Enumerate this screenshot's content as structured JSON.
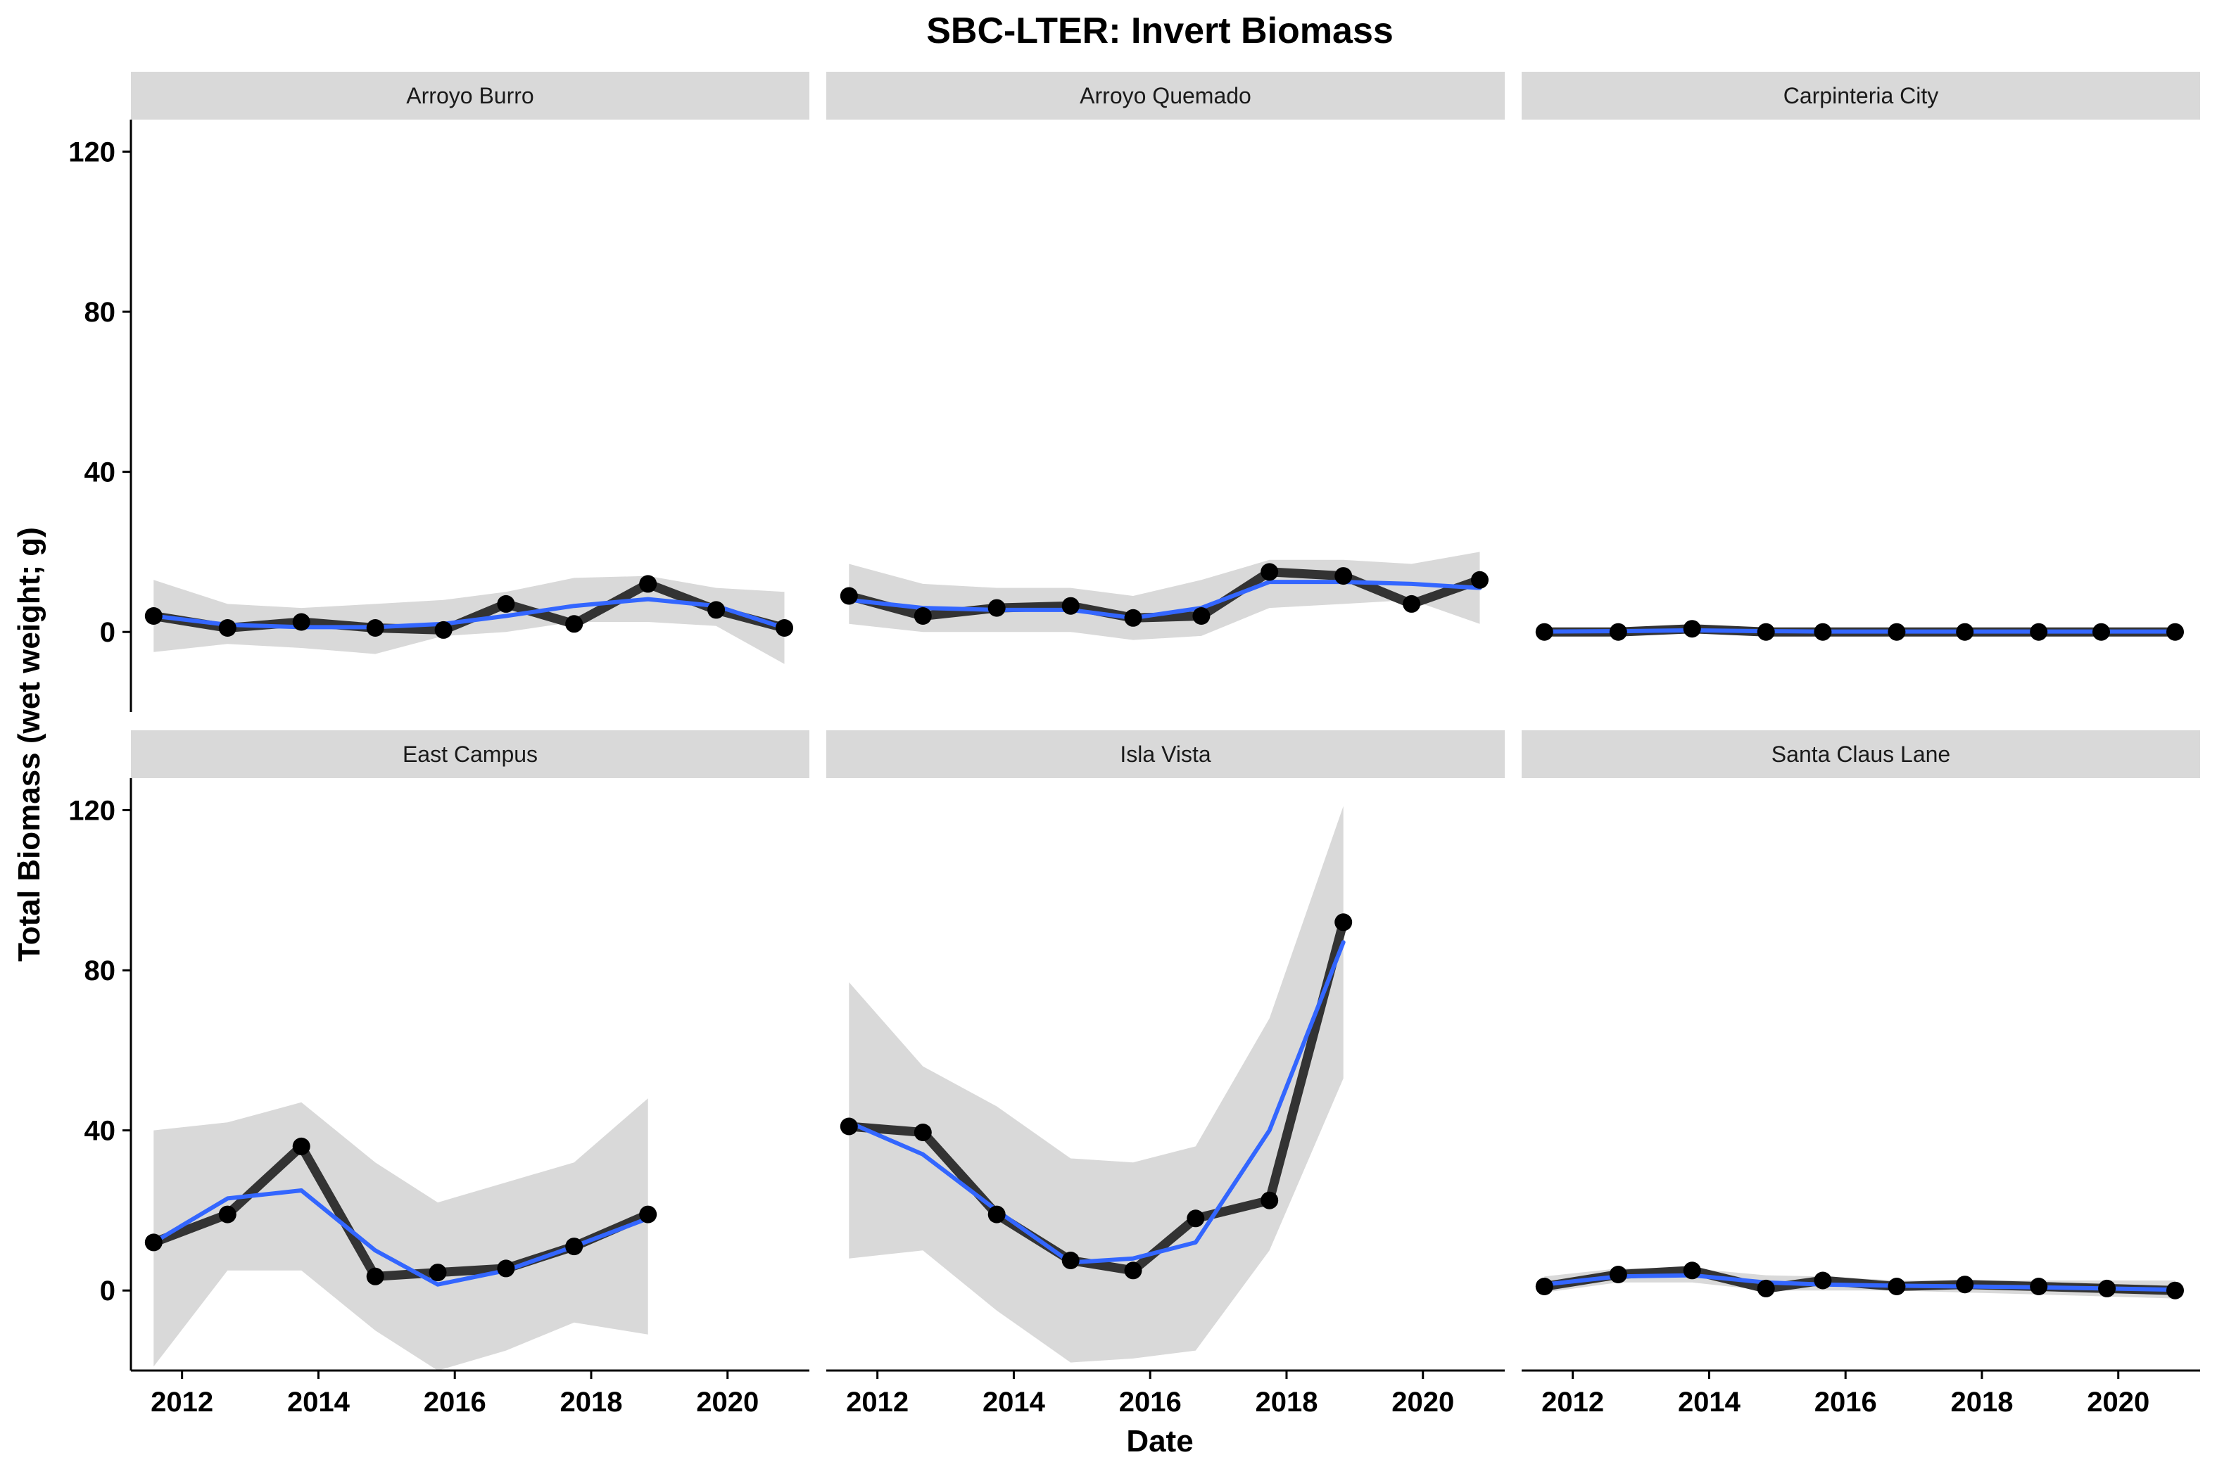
{
  "chart_data": {
    "type": "line",
    "title": "SBC-LTER: Invert Biomass",
    "xlabel": "Date",
    "ylabel": "Total Biomass (wet weight; g)",
    "xlim": [
      2011.25,
      2021.2
    ],
    "ylim": [
      -20,
      128
    ],
    "x_ticks": [
      "2012",
      "2014",
      "2016",
      "2018",
      "2020"
    ],
    "y_ticks": [
      "0",
      "40",
      "80",
      "120"
    ],
    "grid": false,
    "colors": {
      "observed": "#333333",
      "smooth": "#3366FF",
      "ribbon": "#D9D9D9",
      "strip": "#D9D9D9",
      "point": "#000000"
    },
    "facets": [
      {
        "name": "Arroyo Burro",
        "x": [
          "2011-08",
          "2012-09",
          "2013-10",
          "2014-11",
          "2015-11",
          "2016-10",
          "2017-10",
          "2018-11",
          "2019-11",
          "2020-11"
        ],
        "values": [
          4,
          1,
          2.5,
          1,
          0.5,
          7,
          2,
          12,
          5.5,
          1
        ],
        "smooth": [
          4,
          1.8,
          1.2,
          1.2,
          2,
          4,
          6.5,
          8.2,
          6.5,
          1
        ],
        "ci_lower": [
          -5,
          -3,
          -4,
          -5.5,
          -1,
          0,
          2.5,
          2.5,
          1.5,
          -8
        ],
        "ci_upper": [
          13,
          7,
          6,
          7,
          8,
          10,
          13.5,
          14,
          11,
          10
        ]
      },
      {
        "name": "Arroyo Quemado",
        "x": [
          "2011-08",
          "2012-09",
          "2013-10",
          "2014-11",
          "2015-10",
          "2016-10",
          "2017-10",
          "2018-11",
          "2019-11",
          "2020-11"
        ],
        "values": [
          9,
          4,
          6,
          6.5,
          3.5,
          4,
          15,
          14,
          7,
          13
        ],
        "smooth": [
          8,
          6,
          5.5,
          5.5,
          3.5,
          6,
          12.5,
          12.5,
          12,
          11
        ],
        "ci_lower": [
          2,
          0,
          0,
          0,
          -2,
          -1,
          6,
          7,
          8,
          2
        ],
        "ci_upper": [
          17,
          12,
          11,
          11,
          9,
          13,
          18,
          18,
          17,
          20
        ]
      },
      {
        "name": "Carpinteria City",
        "x": [
          "2011-08",
          "2012-09",
          "2013-10",
          "2014-11",
          "2015-09",
          "2016-10",
          "2017-10",
          "2018-11",
          "2019-10",
          "2020-11"
        ],
        "values": [
          0,
          0,
          0.8,
          0,
          0,
          0,
          0,
          0,
          0,
          0
        ],
        "smooth": [
          0.1,
          0.2,
          0.4,
          0.2,
          0.1,
          0.1,
          0.1,
          0.1,
          0.1,
          0.1
        ],
        "ci_lower": [
          -0.6,
          -0.4,
          -0.2,
          -0.4,
          -0.4,
          -0.4,
          -0.4,
          -0.4,
          -0.4,
          -0.6
        ],
        "ci_upper": [
          0.8,
          0.8,
          1,
          0.8,
          0.6,
          0.6,
          0.6,
          0.6,
          0.6,
          0.8
        ]
      },
      {
        "name": "East Campus",
        "x": [
          "2011-08",
          "2012-09",
          "2013-10",
          "2014-11",
          "2015-10",
          "2016-10",
          "2017-10",
          "2018-11"
        ],
        "values": [
          12,
          19,
          36,
          3.5,
          4.5,
          5.5,
          11,
          19
        ],
        "smooth": [
          12,
          23,
          25,
          10,
          1.5,
          5,
          11,
          18
        ],
        "ci_lower": [
          -19,
          5,
          5,
          -10,
          -20,
          -15,
          -8,
          -11
        ],
        "ci_upper": [
          40,
          42,
          47,
          32,
          22,
          27,
          32,
          48
        ]
      },
      {
        "name": "Isla Vista",
        "x": [
          "2011-08",
          "2012-09",
          "2013-10",
          "2014-11",
          "2015-10",
          "2016-09",
          "2017-10",
          "2018-11"
        ],
        "values": [
          41,
          39.5,
          19,
          7.5,
          5,
          18,
          22.5,
          92
        ],
        "smooth": [
          42,
          34,
          20,
          7,
          8,
          12,
          40,
          87
        ],
        "ci_lower": [
          8,
          10,
          -5,
          -18,
          -17,
          -15,
          10,
          53
        ],
        "ci_upper": [
          77,
          56,
          46,
          33,
          32,
          36,
          68,
          121
        ]
      },
      {
        "name": "Santa Claus Lane",
        "x": [
          "2011-08",
          "2012-09",
          "2013-10",
          "2014-11",
          "2015-09",
          "2016-10",
          "2017-10",
          "2018-11",
          "2019-11",
          "2020-11"
        ],
        "values": [
          1,
          4,
          5,
          0.5,
          2.5,
          1,
          1.5,
          1,
          0.5,
          0
        ],
        "smooth": [
          1.5,
          3.5,
          3.8,
          2,
          1.5,
          1.2,
          1,
          0.8,
          0.5,
          0.2
        ],
        "ci_lower": [
          -0.5,
          2,
          2,
          0,
          0,
          0,
          -0.5,
          -1,
          -1.5,
          -2
        ],
        "ci_upper": [
          3.5,
          5.5,
          5.5,
          3.8,
          3.5,
          2.5,
          2.5,
          2.5,
          2.5,
          2.5
        ]
      }
    ]
  }
}
